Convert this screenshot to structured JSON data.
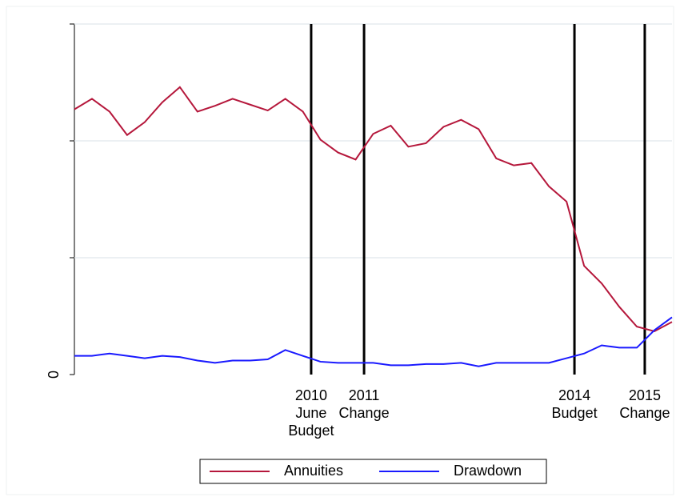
{
  "chart_data": {
    "type": "line",
    "x": [
      0,
      1,
      2,
      3,
      4,
      5,
      6,
      7,
      8,
      9,
      10,
      11,
      12,
      13,
      14,
      15,
      16,
      17,
      18,
      19,
      20,
      21,
      22,
      23,
      24,
      25,
      26,
      27,
      28,
      29,
      30,
      31,
      32,
      33,
      34
    ],
    "xlim": [
      0,
      34
    ],
    "ylim": [
      0,
      3
    ],
    "yticks": [
      0,
      {
        "value": 1,
        "label": null
      },
      {
        "value": 2,
        "label": null
      },
      {
        "value": 3,
        "label": null
      }
    ],
    "grid": true,
    "legend": "bottom",
    "series": [
      {
        "name": "Annuities",
        "color": "#b5173b",
        "values": [
          2.27,
          2.36,
          2.25,
          2.05,
          2.16,
          2.33,
          2.46,
          2.25,
          2.3,
          2.36,
          2.31,
          2.26,
          2.36,
          2.25,
          2.01,
          1.9,
          1.84,
          2.06,
          2.13,
          1.95,
          1.98,
          2.12,
          2.18,
          2.1,
          1.85,
          1.79,
          1.81,
          1.61,
          1.48,
          0.93,
          0.78,
          0.58,
          0.41,
          0.37,
          0.45
        ]
      },
      {
        "name": "Drawdown",
        "color": "#1a1aff",
        "values": [
          0.16,
          0.16,
          0.18,
          0.16,
          0.14,
          0.16,
          0.15,
          0.12,
          0.1,
          0.12,
          0.12,
          0.13,
          0.21,
          0.16,
          0.11,
          0.1,
          0.1,
          0.1,
          0.08,
          0.08,
          0.09,
          0.09,
          0.1,
          0.07,
          0.1,
          0.1,
          0.1,
          0.1,
          0.14,
          0.18,
          0.25,
          0.23,
          0.23,
          0.38,
          0.49
        ]
      }
    ],
    "events": [
      {
        "x": 13.47,
        "lines": [
          "2010",
          "June",
          "Budget"
        ]
      },
      {
        "x": 16.48,
        "lines": [
          "2011",
          "Change"
        ]
      },
      {
        "x": 28.45,
        "lines": [
          "2014",
          "Budget"
        ]
      },
      {
        "x": 32.45,
        "lines": [
          "2015",
          "Change"
        ]
      }
    ]
  }
}
